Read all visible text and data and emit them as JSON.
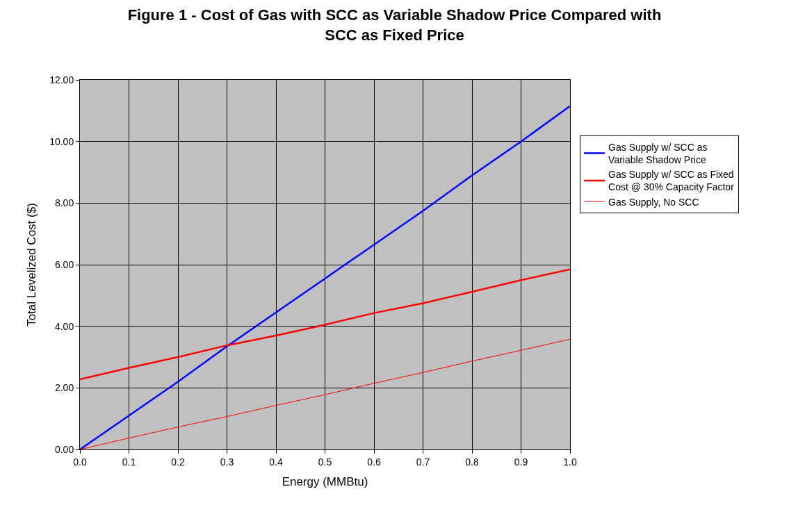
{
  "chart_data": {
    "type": "line",
    "title": "Figure 1 - Cost of Gas with SCC as Variable Shadow Price Compared with SCC as Fixed Price",
    "xlabel": "Energy (MMBtu)",
    "ylabel": "Total Levelized Cost ($)",
    "x": [
      0,
      0.1,
      0.2,
      0.3,
      0.4,
      0.5,
      0.6,
      0.7,
      0.8,
      0.9,
      1.0
    ],
    "series": [
      {
        "name": "Gas Supply w/ SCC as Variable Shadow Price",
        "color": "#0000ff",
        "values": [
          0,
          1.1,
          2.2,
          3.35,
          4.45,
          5.55,
          6.65,
          7.75,
          8.9,
          10.0,
          11.15
        ]
      },
      {
        "name": "Gas Supply w/ SCC as Fixed Cost @ 30% Capacity Factor",
        "color": "#ff0000",
        "values": [
          2.28,
          2.65,
          3.0,
          3.38,
          3.7,
          4.05,
          4.43,
          4.75,
          5.12,
          5.5,
          5.85
        ]
      },
      {
        "name": "Gas Supply, No SCC",
        "color": "#ff0000",
        "values": [
          0,
          0.37,
          0.73,
          1.07,
          1.43,
          1.78,
          2.15,
          2.5,
          2.87,
          3.22,
          3.58
        ]
      }
    ],
    "xlim": [
      0,
      1.0
    ],
    "xticks": [
      {
        "value": 0,
        "label": "0.0"
      },
      {
        "value": 0.1,
        "label": "0.1"
      },
      {
        "value": 0.2,
        "label": "0.2"
      },
      {
        "value": 0.3,
        "label": "0.3"
      },
      {
        "value": 0.4,
        "label": "0.4"
      },
      {
        "value": 0.5,
        "label": "0.5"
      },
      {
        "value": 0.6,
        "label": "0.6"
      },
      {
        "value": 0.7,
        "label": "0.7"
      },
      {
        "value": 0.8,
        "label": "0.8"
      },
      {
        "value": 0.9,
        "label": "0.9"
      },
      {
        "value": 1.0,
        "label": "1.0"
      }
    ],
    "ylim": [
      0,
      12
    ],
    "yticks": [
      {
        "value": 0,
        "label": "0.00"
      },
      {
        "value": 2,
        "label": "2.00"
      },
      {
        "value": 4,
        "label": "4.00"
      },
      {
        "value": 6,
        "label": "6.00"
      },
      {
        "value": 8,
        "label": "8.00"
      },
      {
        "value": 10,
        "label": "10.00"
      },
      {
        "value": 12,
        "label": "12.00"
      }
    ],
    "grid": true,
    "legend": "right",
    "marker": "none",
    "line_style": "solid"
  }
}
